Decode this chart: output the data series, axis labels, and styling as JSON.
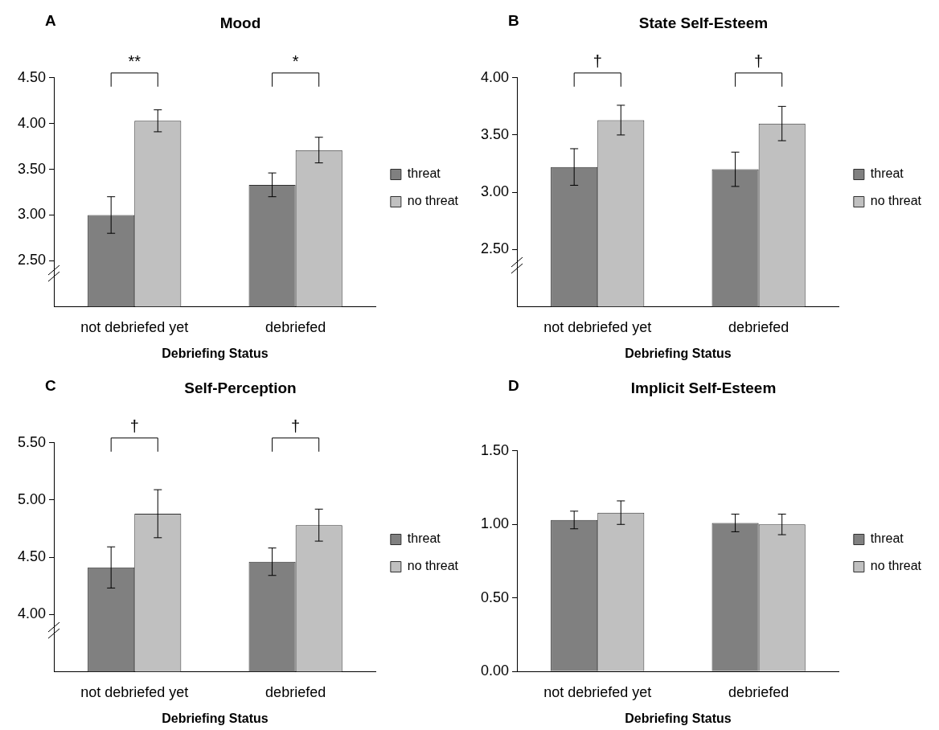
{
  "chart_data": [
    {
      "type": "bar",
      "title": "Mood",
      "xlabel": "Debriefing Status",
      "categories": [
        "not debriefed yet",
        "debriefed"
      ],
      "series": [
        {
          "name": "threat",
          "color": "#808080",
          "values": [
            3.0,
            3.33
          ],
          "errors": [
            0.2,
            0.13
          ]
        },
        {
          "name": "no threat",
          "color": "#c0c0c0",
          "values": [
            4.03,
            3.71
          ],
          "errors": [
            0.12,
            0.14
          ]
        }
      ],
      "ylim": [
        2.0,
        4.5
      ],
      "yticks": [
        {
          "value": 2.5,
          "label": "2.50"
        },
        {
          "value": 3,
          "label": "3.00"
        },
        {
          "value": 3.5,
          "label": "3.50"
        },
        {
          "value": 4,
          "label": "4.00"
        },
        {
          "value": 4.5,
          "label": "4.50"
        }
      ],
      "legend": "right",
      "annotations": [
        "A",
        "**",
        "*"
      ]
    },
    {
      "type": "bar",
      "title": "State Self-Esteem",
      "xlabel": "Debriefing Status",
      "categories": [
        "not debriefed yet",
        "debriefed"
      ],
      "series": [
        {
          "name": "threat",
          "color": "#808080",
          "values": [
            3.22,
            3.2
          ],
          "errors": [
            0.16,
            0.15
          ]
        },
        {
          "name": "no threat",
          "color": "#c0c0c0",
          "values": [
            3.63,
            3.6
          ],
          "errors": [
            0.13,
            0.15
          ]
        }
      ],
      "ylim": [
        2.0,
        4.0
      ],
      "yticks": [
        {
          "value": 2.5,
          "label": "2.50"
        },
        {
          "value": 3,
          "label": "3.00"
        },
        {
          "value": 3.5,
          "label": "3.50"
        },
        {
          "value": 4,
          "label": "4.00"
        }
      ],
      "legend": "right",
      "annotations": [
        "B",
        "†",
        "†"
      ]
    },
    {
      "type": "bar",
      "title": "Self-Perception",
      "xlabel": "Debriefing Status",
      "categories": [
        "not debriefed yet",
        "debriefed"
      ],
      "series": [
        {
          "name": "threat",
          "color": "#808080",
          "values": [
            4.41,
            4.46
          ],
          "errors": [
            0.18,
            0.12
          ]
        },
        {
          "name": "no threat",
          "color": "#c0c0c0",
          "values": [
            4.88,
            4.78
          ],
          "errors": [
            0.21,
            0.14
          ]
        }
      ],
      "ylim": [
        3.5,
        5.5
      ],
      "yticks": [
        {
          "value": 4,
          "label": "4.00"
        },
        {
          "value": 4.5,
          "label": "4.50"
        },
        {
          "value": 5,
          "label": "5.00"
        },
        {
          "value": 5.5,
          "label": "5.50"
        }
      ],
      "legend": "right",
      "annotations": [
        "C",
        "†",
        "†"
      ]
    },
    {
      "type": "bar",
      "title": "Implicit Self-Esteem",
      "xlabel": "Debriefing Status",
      "categories": [
        "not debriefed yet",
        "debriefed"
      ],
      "series": [
        {
          "name": "threat",
          "color": "#808080",
          "values": [
            1.03,
            1.01
          ],
          "errors": [
            0.06,
            0.06
          ]
        },
        {
          "name": "no threat",
          "color": "#c0c0c0",
          "values": [
            1.08,
            1.0
          ],
          "errors": [
            0.08,
            0.07
          ]
        }
      ],
      "ylim": [
        0,
        1.5
      ],
      "yticks": [
        {
          "value": 0,
          "label": "0.00"
        },
        {
          "value": 0.5,
          "label": "0.50"
        },
        {
          "value": 1,
          "label": "1.00"
        },
        {
          "value": 1.5,
          "label": "1.50"
        }
      ],
      "legend": "right",
      "annotations": [
        "D"
      ]
    }
  ]
}
